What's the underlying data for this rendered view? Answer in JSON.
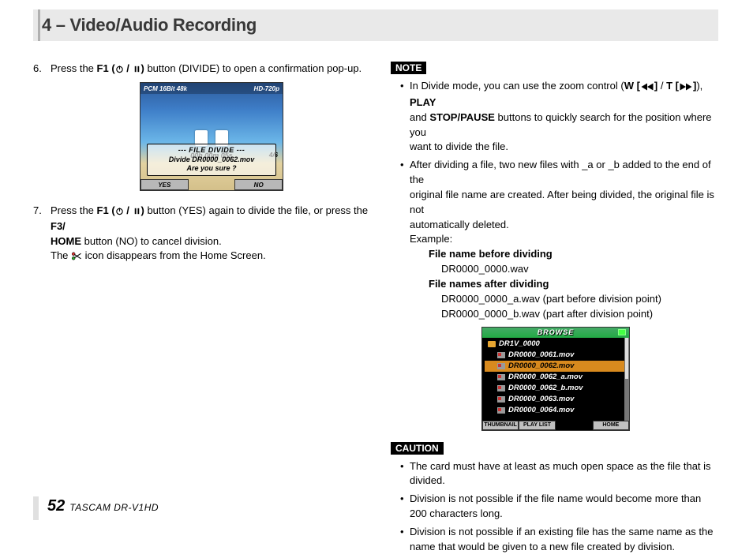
{
  "header": {
    "title": "4 – Video/Audio Recording"
  },
  "steps": [
    {
      "num": "6.",
      "parts": [
        "Press the ",
        {
          "b": "F1 ("
        },
        {
          "icon": "power"
        },
        {
          "b": " / "
        },
        {
          "icon": "pause"
        },
        {
          "b": ")"
        },
        " button (DIVIDE) to open a confirmation pop-up."
      ]
    },
    {
      "num": "7.",
      "parts": [
        "Press the ",
        {
          "b": "F1 ("
        },
        {
          "icon": "power"
        },
        {
          "b": " / "
        },
        {
          "icon": "pause"
        },
        {
          "b": ")"
        },
        " button (YES) again to divide the file, or press the ",
        {
          "b": "F3/"
        }
      ],
      "lines": [
        [
          {
            "b": "HOME"
          },
          " button (NO) to cancel division."
        ],
        [
          "The ",
          {
            "icon": "scissors"
          },
          " icon disappears from the Home Screen."
        ]
      ]
    }
  ],
  "shot1": {
    "top_left": "PCM 16Bit 48k",
    "top_right": "HD-720p",
    "counter": "00h 00m 05s",
    "track": "4/6",
    "hdr": "--- FILE DIVIDE ---",
    "line1": "Divide DR0000_0062.mov",
    "line2": "Are you sure ?",
    "yes": "YES",
    "no": "NO"
  },
  "note_label": "NOTE",
  "notes": [
    {
      "parts": [
        "In Divide mode, you can use the zoom control (",
        {
          "b": "W ["
        },
        {
          "icon": "rw"
        },
        {
          "b": "]"
        },
        " / ",
        {
          "b": "T ["
        },
        {
          "icon": "ff"
        },
        {
          "b": "]"
        },
        "), ",
        {
          "b": "PLAY"
        }
      ],
      "lines": [
        [
          "and ",
          {
            "b": "STOP/PAUSE"
          },
          " buttons to quickly search for the position where you"
        ],
        [
          "want to divide the file."
        ]
      ]
    },
    {
      "parts": [
        "After dividing a file, two new files with _a or _b added to the end of the"
      ],
      "lines": [
        [
          "original file name are created. After being divided, the original file is not"
        ],
        [
          "automatically deleted."
        ],
        [
          "Example:"
        ]
      ],
      "example": {
        "before_label": "File name before dividing",
        "before": "DR0000_0000.wav",
        "after_label": "File names after dividing",
        "after_a": "DR0000_0000_a.wav (part before division point)",
        "after_b": "DR0000_0000_b.wav (part after division point)"
      }
    }
  ],
  "shot2": {
    "title": "BROWSE",
    "folder": "DR1V_0000",
    "files": [
      {
        "name": "DR0000_0061.mov",
        "sel": false
      },
      {
        "name": "DR0000_0062.mov",
        "sel": true
      },
      {
        "name": "DR0000_0062_a.mov",
        "sel": false
      },
      {
        "name": "DR0000_0062_b.mov",
        "sel": false
      },
      {
        "name": "DR0000_0063.mov",
        "sel": false
      },
      {
        "name": "DR0000_0064.mov",
        "sel": false
      }
    ],
    "btns": [
      "THUMBNAIL",
      "PLAY LIST",
      "HOME"
    ]
  },
  "caution_label": "CAUTION",
  "cautions": [
    "The card must have at least as much open space as the file that is divided.",
    "Division is not possible if the file name would become more than 200 characters long.",
    "Division is not possible if an existing file has the same name as the name that would be given to a new file created by division."
  ],
  "footer": {
    "page": "52",
    "product": "TASCAM  DR-V1HD"
  }
}
